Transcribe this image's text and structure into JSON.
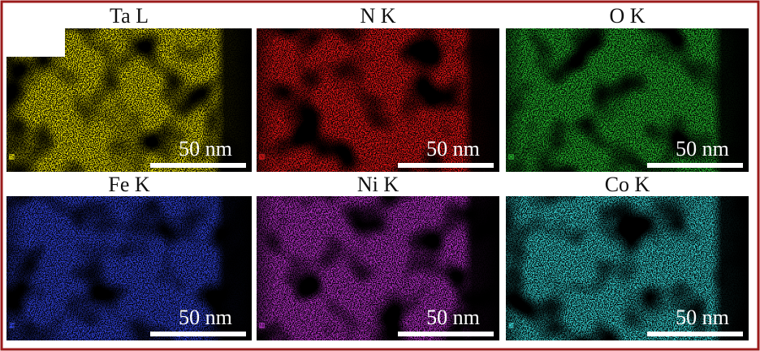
{
  "panels": [
    {
      "title": "Ta L",
      "corner_label": "Ta",
      "scale_bar": "50 nm",
      "color": "#e6dc00"
    },
    {
      "title": "N K",
      "corner_label": "N",
      "scale_bar": "50 nm",
      "color": "#e01414"
    },
    {
      "title": "O K",
      "corner_label": "O",
      "scale_bar": "50 nm",
      "color": "#22b02a"
    },
    {
      "title": "Fe K",
      "corner_label": "Fe",
      "scale_bar": "50 nm",
      "color": "#2e3fd2"
    },
    {
      "title": "Ni K",
      "corner_label": "Ni",
      "scale_bar": "50 nm",
      "color": "#b22ec4"
    },
    {
      "title": "Co K",
      "corner_label": "Co",
      "scale_bar": "50 nm",
      "color": "#34cccc"
    }
  ]
}
